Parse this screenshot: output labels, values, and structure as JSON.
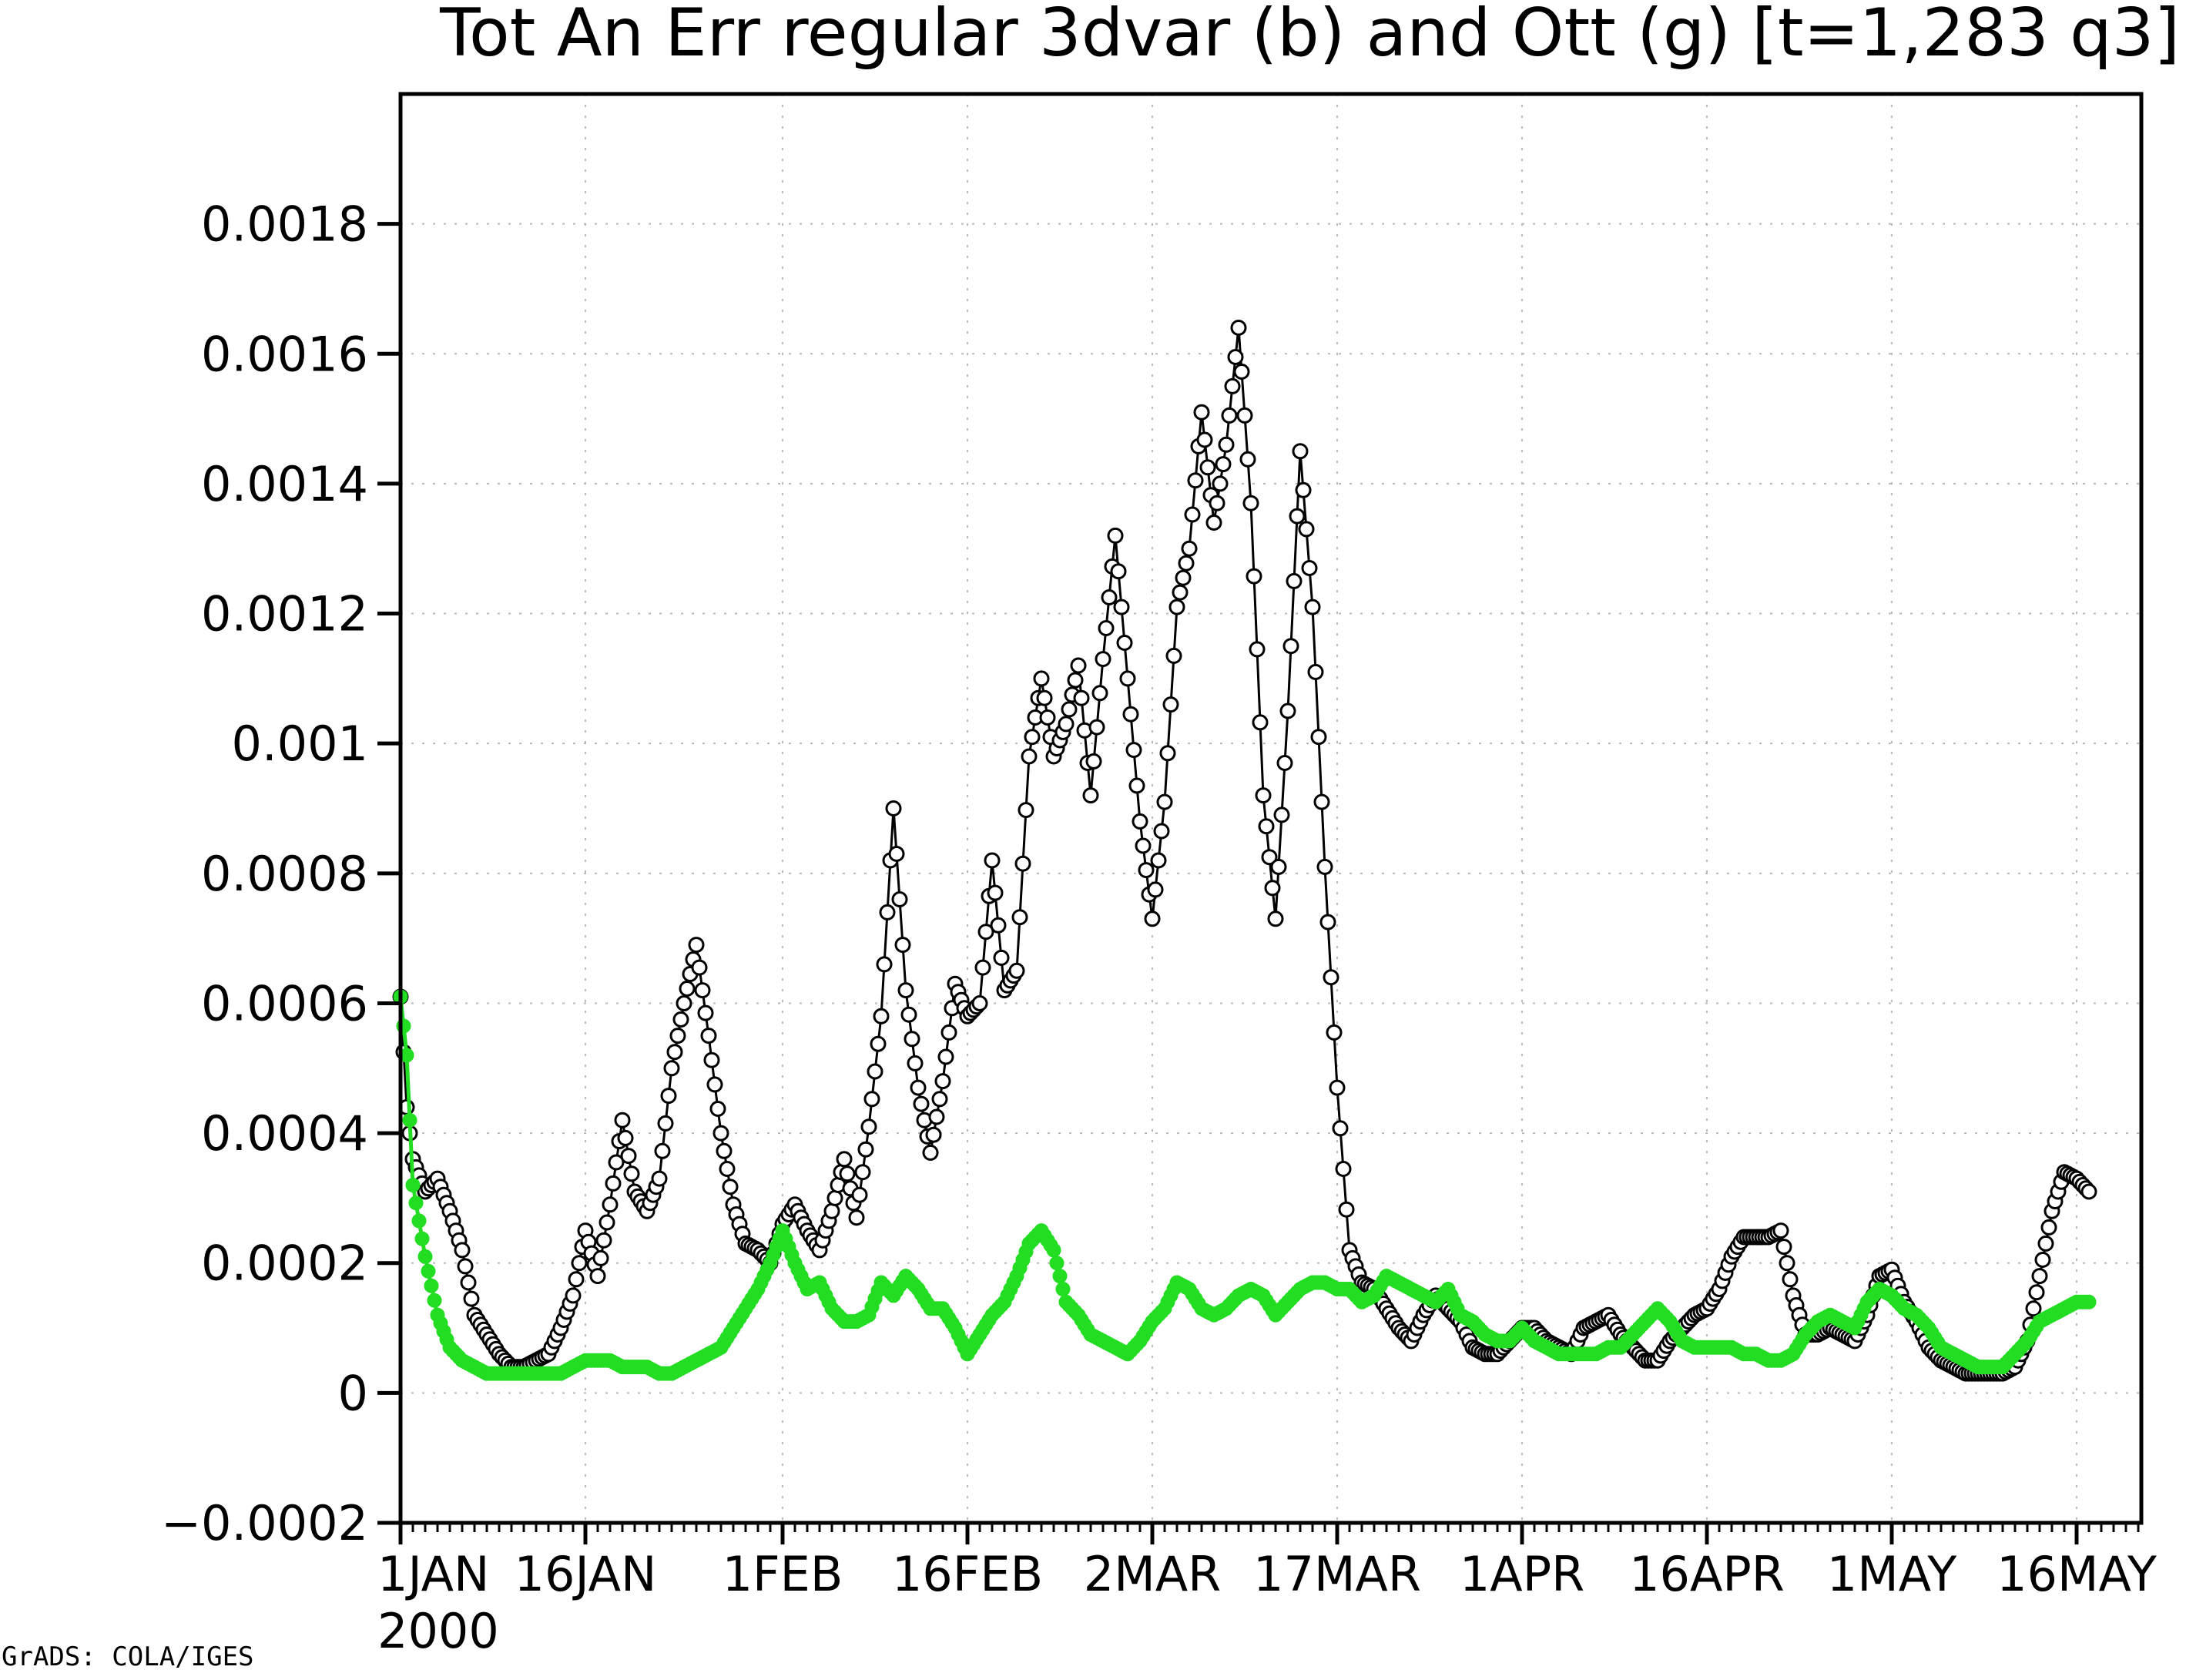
{
  "credit": "GrADS: COLA/IGES",
  "colors": {
    "series_b": "#000000",
    "series_g": "#22dd22",
    "grid": "#b8b8b8"
  },
  "chart_data": {
    "type": "line",
    "title": "Tot An Err regular 3dvar (b) and Ott (g) [t=1,283 q3]",
    "xlabel": "",
    "ylabel": "",
    "x_unit": "days since 1 JAN 2000 (6-hourly samples)",
    "x_ticks": [
      {
        "label": "1JAN",
        "x": 0
      },
      {
        "label": "16JAN",
        "x": 15
      },
      {
        "label": "1FEB",
        "x": 31
      },
      {
        "label": "16FEB",
        "x": 46
      },
      {
        "label": "2MAR",
        "x": 61
      },
      {
        "label": "17MAR",
        "x": 76
      },
      {
        "label": "1APR",
        "x": 91
      },
      {
        "label": "16APR",
        "x": 106
      },
      {
        "label": "1MAY",
        "x": 121
      },
      {
        "label": "16MAY",
        "x": 136
      }
    ],
    "x_sublabel": "2000",
    "xlim": [
      0,
      141.25
    ],
    "ylim": [
      -0.0002,
      0.002
    ],
    "y_ticks": [
      {
        "label": "−0.0002",
        "v": -0.0002
      },
      {
        "label": "0",
        "v": 0
      },
      {
        "label": "0.0002",
        "v": 0.0002
      },
      {
        "label": "0.0004",
        "v": 0.0004
      },
      {
        "label": "0.0006",
        "v": 0.0006
      },
      {
        "label": "0.0008",
        "v": 0.0008
      },
      {
        "label": "0.001",
        "v": 0.001
      },
      {
        "label": "0.0012",
        "v": 0.0012
      },
      {
        "label": "0.0014",
        "v": 0.0014
      },
      {
        "label": "0.0016",
        "v": 0.0016
      },
      {
        "label": "0.0018",
        "v": 0.0018
      }
    ],
    "grid": true,
    "x_step": 0.25,
    "series": [
      {
        "key": "b",
        "marker": "open-circle",
        "anchors": [
          [
            0,
            0.00061
          ],
          [
            0.5,
            0.00044
          ],
          [
            1,
            0.00036
          ],
          [
            2,
            0.00031
          ],
          [
            3,
            0.00033
          ],
          [
            4,
            0.00028
          ],
          [
            5,
            0.00022
          ],
          [
            6,
            0.00012
          ],
          [
            7,
            9e-05
          ],
          [
            8,
            6e-05
          ],
          [
            9,
            4e-05
          ],
          [
            10,
            4e-05
          ],
          [
            11,
            5e-05
          ],
          [
            12,
            6e-05
          ],
          [
            13,
            0.0001
          ],
          [
            14,
            0.00015
          ],
          [
            15,
            0.00025
          ],
          [
            16,
            0.00018
          ],
          [
            17,
            0.00029
          ],
          [
            18,
            0.00042
          ],
          [
            19,
            0.00031
          ],
          [
            20,
            0.00028
          ],
          [
            21,
            0.00033
          ],
          [
            22,
            0.0005
          ],
          [
            23,
            0.0006
          ],
          [
            24,
            0.00069
          ],
          [
            25,
            0.00055
          ],
          [
            26,
            0.0004
          ],
          [
            27,
            0.00029
          ],
          [
            28,
            0.00023
          ],
          [
            29,
            0.00022
          ],
          [
            30,
            0.0002
          ],
          [
            31,
            0.00026
          ],
          [
            32,
            0.00029
          ],
          [
            33,
            0.00025
          ],
          [
            34,
            0.00022
          ],
          [
            35,
            0.00028
          ],
          [
            36,
            0.00036
          ],
          [
            37,
            0.00027
          ],
          [
            38,
            0.00041
          ],
          [
            39,
            0.00058
          ],
          [
            40,
            0.0009
          ],
          [
            41,
            0.00062
          ],
          [
            42,
            0.00047
          ],
          [
            43,
            0.00037
          ],
          [
            44,
            0.00048
          ],
          [
            45,
            0.00063
          ],
          [
            46,
            0.00058
          ],
          [
            47,
            0.0006
          ],
          [
            48,
            0.00082
          ],
          [
            49,
            0.00062
          ],
          [
            50,
            0.00065
          ],
          [
            51,
            0.00098
          ],
          [
            52,
            0.0011
          ],
          [
            53,
            0.00098
          ],
          [
            54,
            0.00103
          ],
          [
            55,
            0.00112
          ],
          [
            56,
            0.00092
          ],
          [
            57,
            0.00113
          ],
          [
            58,
            0.00132
          ],
          [
            59,
            0.0011
          ],
          [
            60,
            0.00088
          ],
          [
            61,
            0.00073
          ],
          [
            62,
            0.00091
          ],
          [
            63,
            0.00121
          ],
          [
            64,
            0.0013
          ],
          [
            65,
            0.00151
          ],
          [
            66,
            0.00134
          ],
          [
            67,
            0.00146
          ],
          [
            68,
            0.00164
          ],
          [
            69,
            0.00137
          ],
          [
            70,
            0.00092
          ],
          [
            71,
            0.00073
          ],
          [
            72,
            0.00105
          ],
          [
            73,
            0.00145
          ],
          [
            74,
            0.00121
          ],
          [
            75,
            0.00081
          ],
          [
            76,
            0.00047
          ],
          [
            77,
            0.00022
          ],
          [
            78,
            0.00017
          ],
          [
            79,
            0.00016
          ],
          [
            80,
            0.00013
          ],
          [
            81,
            0.0001
          ],
          [
            82,
            8e-05
          ],
          [
            83,
            0.00012
          ],
          [
            84,
            0.00015
          ],
          [
            85,
            0.00013
          ],
          [
            86,
            0.00011
          ],
          [
            87,
            7e-05
          ],
          [
            88,
            6e-05
          ],
          [
            89,
            6e-05
          ],
          [
            90,
            8e-05
          ],
          [
            91,
            0.0001
          ],
          [
            92,
            0.0001
          ],
          [
            93,
            8e-05
          ],
          [
            94,
            7e-05
          ],
          [
            95,
            6e-05
          ],
          [
            96,
            0.0001
          ],
          [
            97,
            0.00011
          ],
          [
            98,
            0.00012
          ],
          [
            99,
            9e-05
          ],
          [
            100,
            7e-05
          ],
          [
            101,
            5e-05
          ],
          [
            102,
            5e-05
          ],
          [
            103,
            8e-05
          ],
          [
            104,
            0.0001
          ],
          [
            105,
            0.00012
          ],
          [
            106,
            0.00013
          ],
          [
            107,
            0.00016
          ],
          [
            108,
            0.00021
          ],
          [
            109,
            0.00024
          ],
          [
            110,
            0.00024
          ],
          [
            111,
            0.00024
          ],
          [
            112,
            0.00025
          ],
          [
            113,
            0.00015
          ],
          [
            114,
            9e-05
          ],
          [
            115,
            9e-05
          ],
          [
            116,
            0.0001
          ],
          [
            117,
            9e-05
          ],
          [
            118,
            8e-05
          ],
          [
            119,
            0.00012
          ],
          [
            120,
            0.00018
          ],
          [
            121,
            0.00019
          ],
          [
            122,
            0.00014
          ],
          [
            123,
            0.00011
          ],
          [
            124,
            7e-05
          ],
          [
            125,
            5e-05
          ],
          [
            126,
            4e-05
          ],
          [
            127,
            3e-05
          ],
          [
            128,
            3e-05
          ],
          [
            129,
            3e-05
          ],
          [
            130,
            3e-05
          ],
          [
            131,
            4e-05
          ],
          [
            132,
            8e-05
          ],
          [
            133,
            0.00018
          ],
          [
            134,
            0.00028
          ],
          [
            135,
            0.00034
          ],
          [
            136,
            0.00033
          ],
          [
            137,
            0.00031
          ]
        ]
      },
      {
        "key": "g",
        "marker": "filled-circle",
        "anchors": [
          [
            0,
            0.00061
          ],
          [
            0.5,
            0.00052
          ],
          [
            1,
            0.00032
          ],
          [
            2,
            0.00021
          ],
          [
            3,
            0.00012
          ],
          [
            4,
            7e-05
          ],
          [
            5,
            5e-05
          ],
          [
            6,
            4e-05
          ],
          [
            7,
            3e-05
          ],
          [
            8,
            3e-05
          ],
          [
            9,
            3e-05
          ],
          [
            10,
            3e-05
          ],
          [
            11,
            3e-05
          ],
          [
            12,
            3e-05
          ],
          [
            13,
            3e-05
          ],
          [
            14,
            4e-05
          ],
          [
            15,
            5e-05
          ],
          [
            16,
            5e-05
          ],
          [
            17,
            5e-05
          ],
          [
            18,
            4e-05
          ],
          [
            19,
            4e-05
          ],
          [
            20,
            4e-05
          ],
          [
            21,
            3e-05
          ],
          [
            22,
            3e-05
          ],
          [
            23,
            4e-05
          ],
          [
            24,
            5e-05
          ],
          [
            25,
            6e-05
          ],
          [
            26,
            7e-05
          ],
          [
            27,
            0.0001
          ],
          [
            28,
            0.00013
          ],
          [
            29,
            0.00016
          ],
          [
            30,
            0.0002
          ],
          [
            31,
            0.00025
          ],
          [
            32,
            0.0002
          ],
          [
            33,
            0.00016
          ],
          [
            34,
            0.00017
          ],
          [
            35,
            0.00013
          ],
          [
            36,
            0.00011
          ],
          [
            37,
            0.00011
          ],
          [
            38,
            0.00012
          ],
          [
            39,
            0.00017
          ],
          [
            40,
            0.00015
          ],
          [
            41,
            0.00018
          ],
          [
            42,
            0.00016
          ],
          [
            43,
            0.00013
          ],
          [
            44,
            0.00013
          ],
          [
            45,
            0.0001
          ],
          [
            46,
            6e-05
          ],
          [
            47,
            9e-05
          ],
          [
            48,
            0.00012
          ],
          [
            49,
            0.00014
          ],
          [
            50,
            0.00018
          ],
          [
            51,
            0.00023
          ],
          [
            52,
            0.00025
          ],
          [
            53,
            0.00022
          ],
          [
            54,
            0.00014
          ],
          [
            55,
            0.00012
          ],
          [
            56,
            9e-05
          ],
          [
            57,
            8e-05
          ],
          [
            58,
            7e-05
          ],
          [
            59,
            6e-05
          ],
          [
            60,
            8e-05
          ],
          [
            61,
            0.00011
          ],
          [
            62,
            0.00013
          ],
          [
            63,
            0.00017
          ],
          [
            64,
            0.00016
          ],
          [
            65,
            0.00013
          ],
          [
            66,
            0.00012
          ],
          [
            67,
            0.00013
          ],
          [
            68,
            0.00015
          ],
          [
            69,
            0.00016
          ],
          [
            70,
            0.00015
          ],
          [
            71,
            0.00012
          ],
          [
            72,
            0.00014
          ],
          [
            73,
            0.00016
          ],
          [
            74,
            0.00017
          ],
          [
            75,
            0.00017
          ],
          [
            76,
            0.00016
          ],
          [
            77,
            0.00016
          ],
          [
            78,
            0.00014
          ],
          [
            79,
            0.00015
          ],
          [
            80,
            0.00018
          ],
          [
            81,
            0.00017
          ],
          [
            82,
            0.00016
          ],
          [
            83,
            0.00015
          ],
          [
            84,
            0.00014
          ],
          [
            85,
            0.00016
          ],
          [
            86,
            0.00012
          ],
          [
            87,
            0.00011
          ],
          [
            88,
            9e-05
          ],
          [
            89,
            8e-05
          ],
          [
            90,
            8e-05
          ],
          [
            91,
            0.0001
          ],
          [
            92,
            8e-05
          ],
          [
            93,
            7e-05
          ],
          [
            94,
            6e-05
          ],
          [
            95,
            6e-05
          ],
          [
            96,
            6e-05
          ],
          [
            97,
            6e-05
          ],
          [
            98,
            7e-05
          ],
          [
            99,
            7e-05
          ],
          [
            100,
            9e-05
          ],
          [
            101,
            0.00011
          ],
          [
            102,
            0.00013
          ],
          [
            103,
            0.00011
          ],
          [
            104,
            8e-05
          ],
          [
            105,
            7e-05
          ],
          [
            106,
            7e-05
          ],
          [
            107,
            7e-05
          ],
          [
            108,
            7e-05
          ],
          [
            109,
            6e-05
          ],
          [
            110,
            6e-05
          ],
          [
            111,
            5e-05
          ],
          [
            112,
            5e-05
          ],
          [
            113,
            6e-05
          ],
          [
            114,
            9e-05
          ],
          [
            115,
            0.00011
          ],
          [
            116,
            0.00012
          ],
          [
            117,
            0.00011
          ],
          [
            118,
            0.0001
          ],
          [
            119,
            0.00014
          ],
          [
            120,
            0.00016
          ],
          [
            121,
            0.00015
          ],
          [
            122,
            0.00013
          ],
          [
            123,
            0.00012
          ],
          [
            124,
            0.0001
          ],
          [
            125,
            7e-05
          ],
          [
            126,
            6e-05
          ],
          [
            127,
            5e-05
          ],
          [
            128,
            4e-05
          ],
          [
            129,
            4e-05
          ],
          [
            130,
            4e-05
          ],
          [
            131,
            6e-05
          ],
          [
            132,
            8e-05
          ],
          [
            133,
            0.00011
          ],
          [
            134,
            0.00012
          ],
          [
            135,
            0.00013
          ],
          [
            136,
            0.00014
          ],
          [
            137,
            0.00014
          ]
        ]
      }
    ]
  }
}
